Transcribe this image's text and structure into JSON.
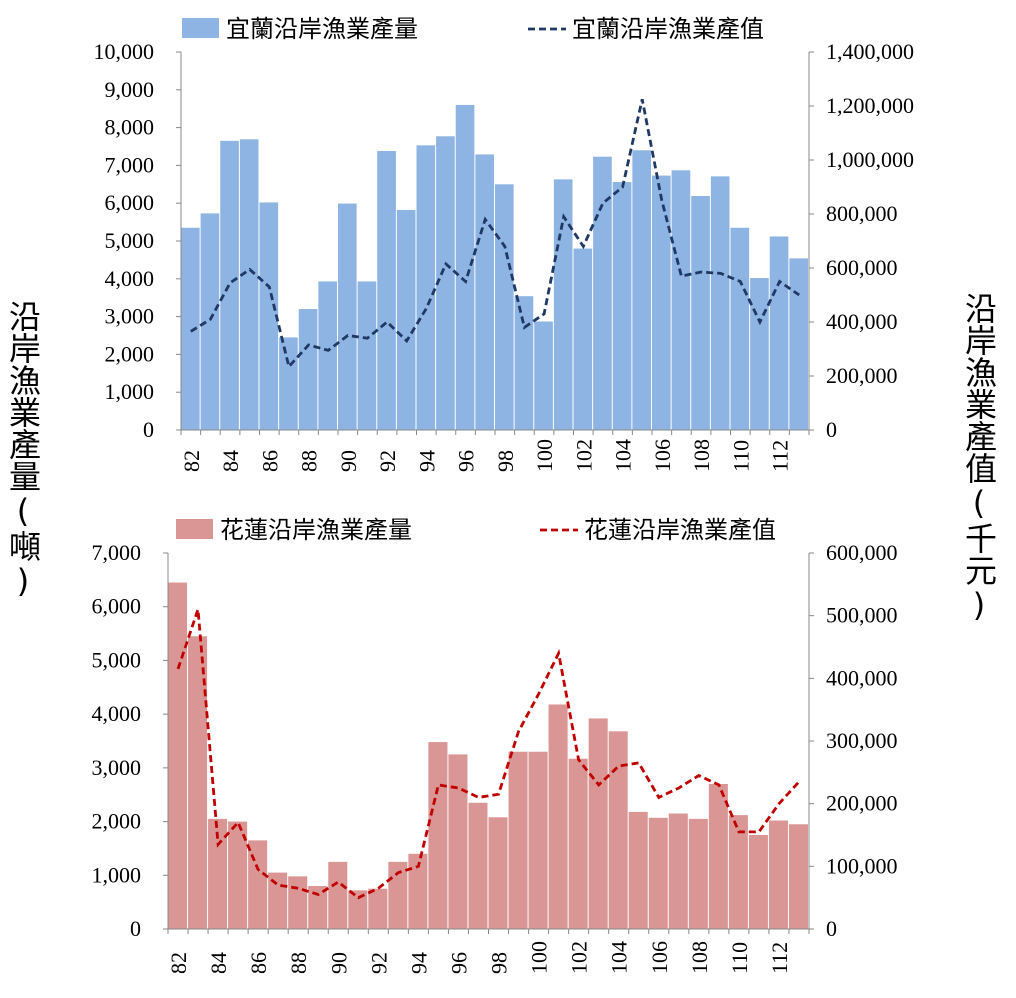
{
  "y_axis_left_label": "沿岸漁業產量(噸)",
  "y_axis_right_label": "沿岸漁業產值(千元)",
  "chart_data": [
    {
      "type": "bar",
      "categories": [
        "82",
        "83",
        "84",
        "85",
        "86",
        "87",
        "88",
        "89",
        "90",
        "91",
        "92",
        "93",
        "94",
        "95",
        "96",
        "97",
        "98",
        "99",
        "100",
        "101",
        "102",
        "103",
        "104",
        "105",
        "106",
        "107",
        "108",
        "109",
        "110",
        "111",
        "112",
        "113"
      ],
      "x_tick_labels": [
        "82",
        "84",
        "86",
        "88",
        "90",
        "92",
        "94",
        "96",
        "98",
        "100",
        "102",
        "104",
        "106",
        "108",
        "110",
        "112"
      ],
      "series": [
        {
          "name": "宜蘭沿岸漁業產量",
          "kind": "bar",
          "axis": "left",
          "color": "#8db4e2",
          "values": [
            5350,
            5730,
            7650,
            7690,
            6020,
            2450,
            3200,
            3930,
            5990,
            3930,
            7380,
            5820,
            7530,
            7770,
            8600,
            7290,
            6500,
            3540,
            2870,
            6630,
            4800,
            7230,
            6560,
            7400,
            6730,
            6870,
            6190,
            6710,
            5350,
            4020,
            5120,
            4540
          ]
        },
        {
          "name": "宜蘭沿岸漁業產值",
          "kind": "line",
          "axis": "right",
          "color": "#1f3864",
          "values": [
            365000,
            410000,
            545000,
            595000,
            530000,
            235000,
            315000,
            295000,
            350000,
            340000,
            400000,
            330000,
            450000,
            615000,
            550000,
            780000,
            680000,
            380000,
            430000,
            790000,
            680000,
            840000,
            900000,
            1225000,
            850000,
            570000,
            585000,
            580000,
            550000,
            400000,
            550000,
            500000
          ]
        }
      ],
      "ylim_left": [
        0,
        10000
      ],
      "ylim_right": [
        0,
        1400000
      ],
      "yticks_left": [
        "0",
        "1,000",
        "2,000",
        "3,000",
        "4,000",
        "5,000",
        "6,000",
        "7,000",
        "8,000",
        "9,000",
        "10,000"
      ],
      "yticks_right": [
        "0",
        "200,000",
        "400,000",
        "600,000",
        "800,000",
        "1,000,000",
        "1,200,000",
        "1,400,000"
      ],
      "legend_position": "top",
      "grid": false
    },
    {
      "type": "bar",
      "categories": [
        "82",
        "83",
        "84",
        "85",
        "86",
        "87",
        "88",
        "89",
        "90",
        "91",
        "92",
        "93",
        "94",
        "95",
        "96",
        "97",
        "98",
        "99",
        "100",
        "101",
        "102",
        "103",
        "104",
        "105",
        "106",
        "107",
        "108",
        "109",
        "110",
        "111",
        "112",
        "113"
      ],
      "x_tick_labels": [
        "82",
        "84",
        "86",
        "88",
        "90",
        "92",
        "94",
        "96",
        "98",
        "100",
        "102",
        "104",
        "106",
        "108",
        "110",
        "112"
      ],
      "series": [
        {
          "name": "花蓮沿岸漁業產量",
          "kind": "bar",
          "axis": "left",
          "color": "#d99694",
          "values": [
            6450,
            5450,
            2050,
            2000,
            1650,
            1050,
            980,
            800,
            1250,
            720,
            750,
            1250,
            1400,
            3480,
            3250,
            2350,
            2080,
            3300,
            3300,
            4180,
            3170,
            3920,
            3680,
            2180,
            2070,
            2150,
            2050,
            2700,
            2120,
            1750,
            2020,
            1950
          ]
        },
        {
          "name": "花蓮沿岸漁業產值",
          "kind": "line",
          "axis": "right",
          "color": "#c00000",
          "values": [
            415000,
            510000,
            135000,
            170000,
            95000,
            70000,
            65000,
            55000,
            75000,
            50000,
            65000,
            90000,
            100000,
            230000,
            225000,
            210000,
            215000,
            315000,
            375000,
            440000,
            270000,
            230000,
            260000,
            265000,
            210000,
            225000,
            245000,
            230000,
            155000,
            155000,
            200000,
            235000
          ]
        }
      ],
      "ylim_left": [
        0,
        7000
      ],
      "ylim_right": [
        0,
        600000
      ],
      "yticks_left": [
        "0",
        "1,000",
        "2,000",
        "3,000",
        "4,000",
        "5,000",
        "6,000",
        "7,000"
      ],
      "yticks_right": [
        "0",
        "100,000",
        "200,000",
        "300,000",
        "400,000",
        "500,000",
        "600,000"
      ],
      "legend_position": "top",
      "grid": false
    }
  ]
}
